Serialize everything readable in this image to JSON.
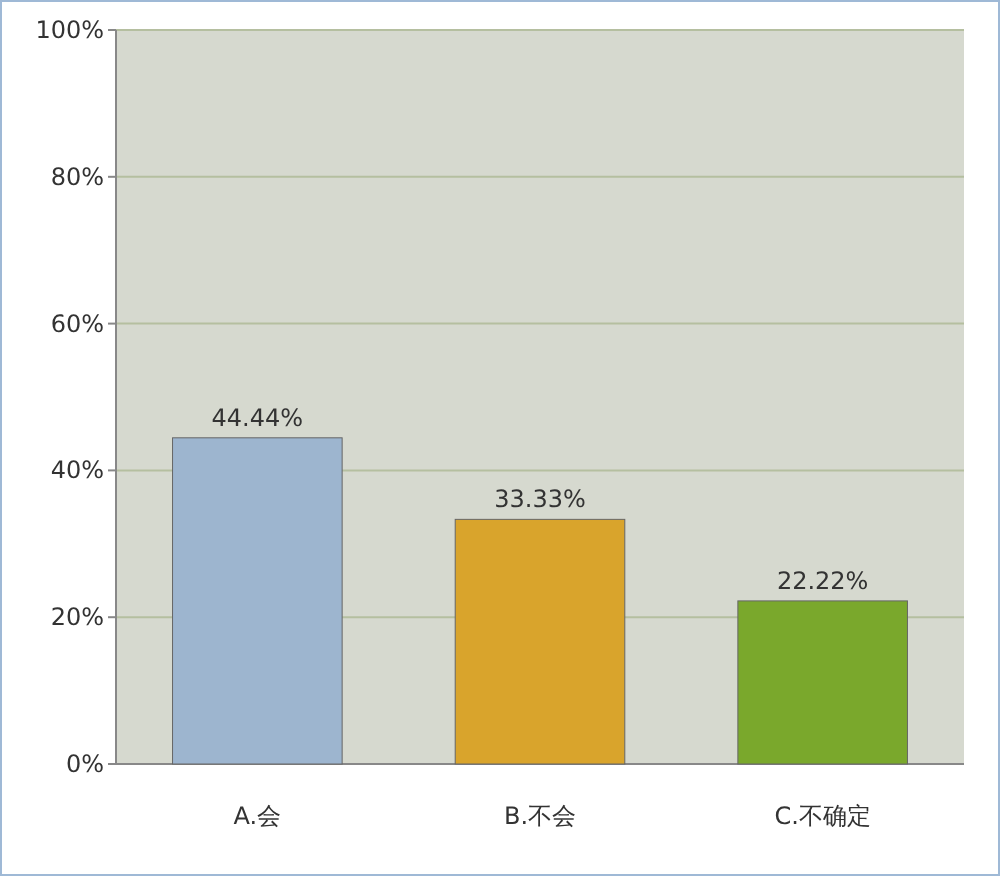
{
  "chart_data": {
    "type": "bar",
    "categories": [
      "A.会",
      "B.不会",
      "C.不确定"
    ],
    "values": [
      44.44,
      33.33,
      22.22
    ],
    "colors": [
      "#9db5cf",
      "#d9a42c",
      "#7aa82c"
    ],
    "value_labels": [
      "44.44%",
      "33.33%",
      "22.22%"
    ],
    "ylim": [
      0,
      100
    ],
    "yticks": [
      {
        "value": 0,
        "label": "0%"
      },
      {
        "value": 20,
        "label": "20%"
      },
      {
        "value": 40,
        "label": "40%"
      },
      {
        "value": 60,
        "label": "60%"
      },
      {
        "value": 80,
        "label": "80%"
      },
      {
        "value": 100,
        "label": "100%"
      }
    ],
    "grid": "y"
  }
}
